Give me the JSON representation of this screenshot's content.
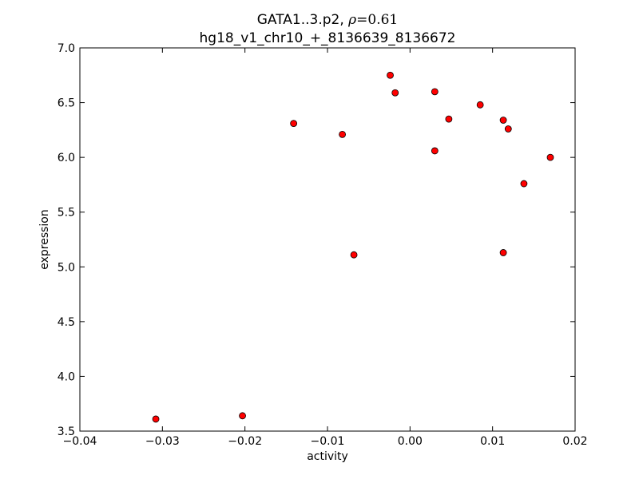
{
  "chart_data": {
    "type": "scatter",
    "title_prefix": "GATA1..3.p2, ",
    "title_rho_symbol": "ρ",
    "title_rho_value": "=0.61",
    "subtitle": "hg18_v1_chr10_+_8136639_8136672",
    "xlabel": "activity",
    "ylabel": "expression",
    "xlim": [
      -0.04,
      0.02
    ],
    "ylim": [
      3.5,
      7.0
    ],
    "xticks": [
      -0.04,
      -0.03,
      -0.02,
      -0.01,
      0.0,
      0.01,
      0.02
    ],
    "xtick_labels": [
      "−0.04",
      "−0.03",
      "−0.02",
      "−0.01",
      "0.00",
      "0.01",
      "0.02"
    ],
    "yticks": [
      3.5,
      4.0,
      4.5,
      5.0,
      5.5,
      6.0,
      6.5,
      7.0
    ],
    "ytick_labels": [
      "3.5",
      "4.0",
      "4.5",
      "5.0",
      "5.5",
      "6.0",
      "6.5",
      "7.0"
    ],
    "grid": false,
    "marker_color": "#ff0000",
    "marker_edge": "#000000",
    "points": [
      {
        "x": -0.0308,
        "y": 3.61
      },
      {
        "x": -0.0203,
        "y": 3.64
      },
      {
        "x": -0.0141,
        "y": 6.31
      },
      {
        "x": -0.0082,
        "y": 6.21
      },
      {
        "x": -0.0068,
        "y": 5.11
      },
      {
        "x": -0.0024,
        "y": 6.75
      },
      {
        "x": -0.0018,
        "y": 6.59
      },
      {
        "x": 0.003,
        "y": 6.6
      },
      {
        "x": 0.003,
        "y": 6.06
      },
      {
        "x": 0.0047,
        "y": 6.35
      },
      {
        "x": 0.0085,
        "y": 6.48
      },
      {
        "x": 0.0113,
        "y": 6.34
      },
      {
        "x": 0.0119,
        "y": 6.26
      },
      {
        "x": 0.0113,
        "y": 5.13
      },
      {
        "x": 0.0138,
        "y": 5.76
      },
      {
        "x": 0.017,
        "y": 6.0
      }
    ]
  }
}
